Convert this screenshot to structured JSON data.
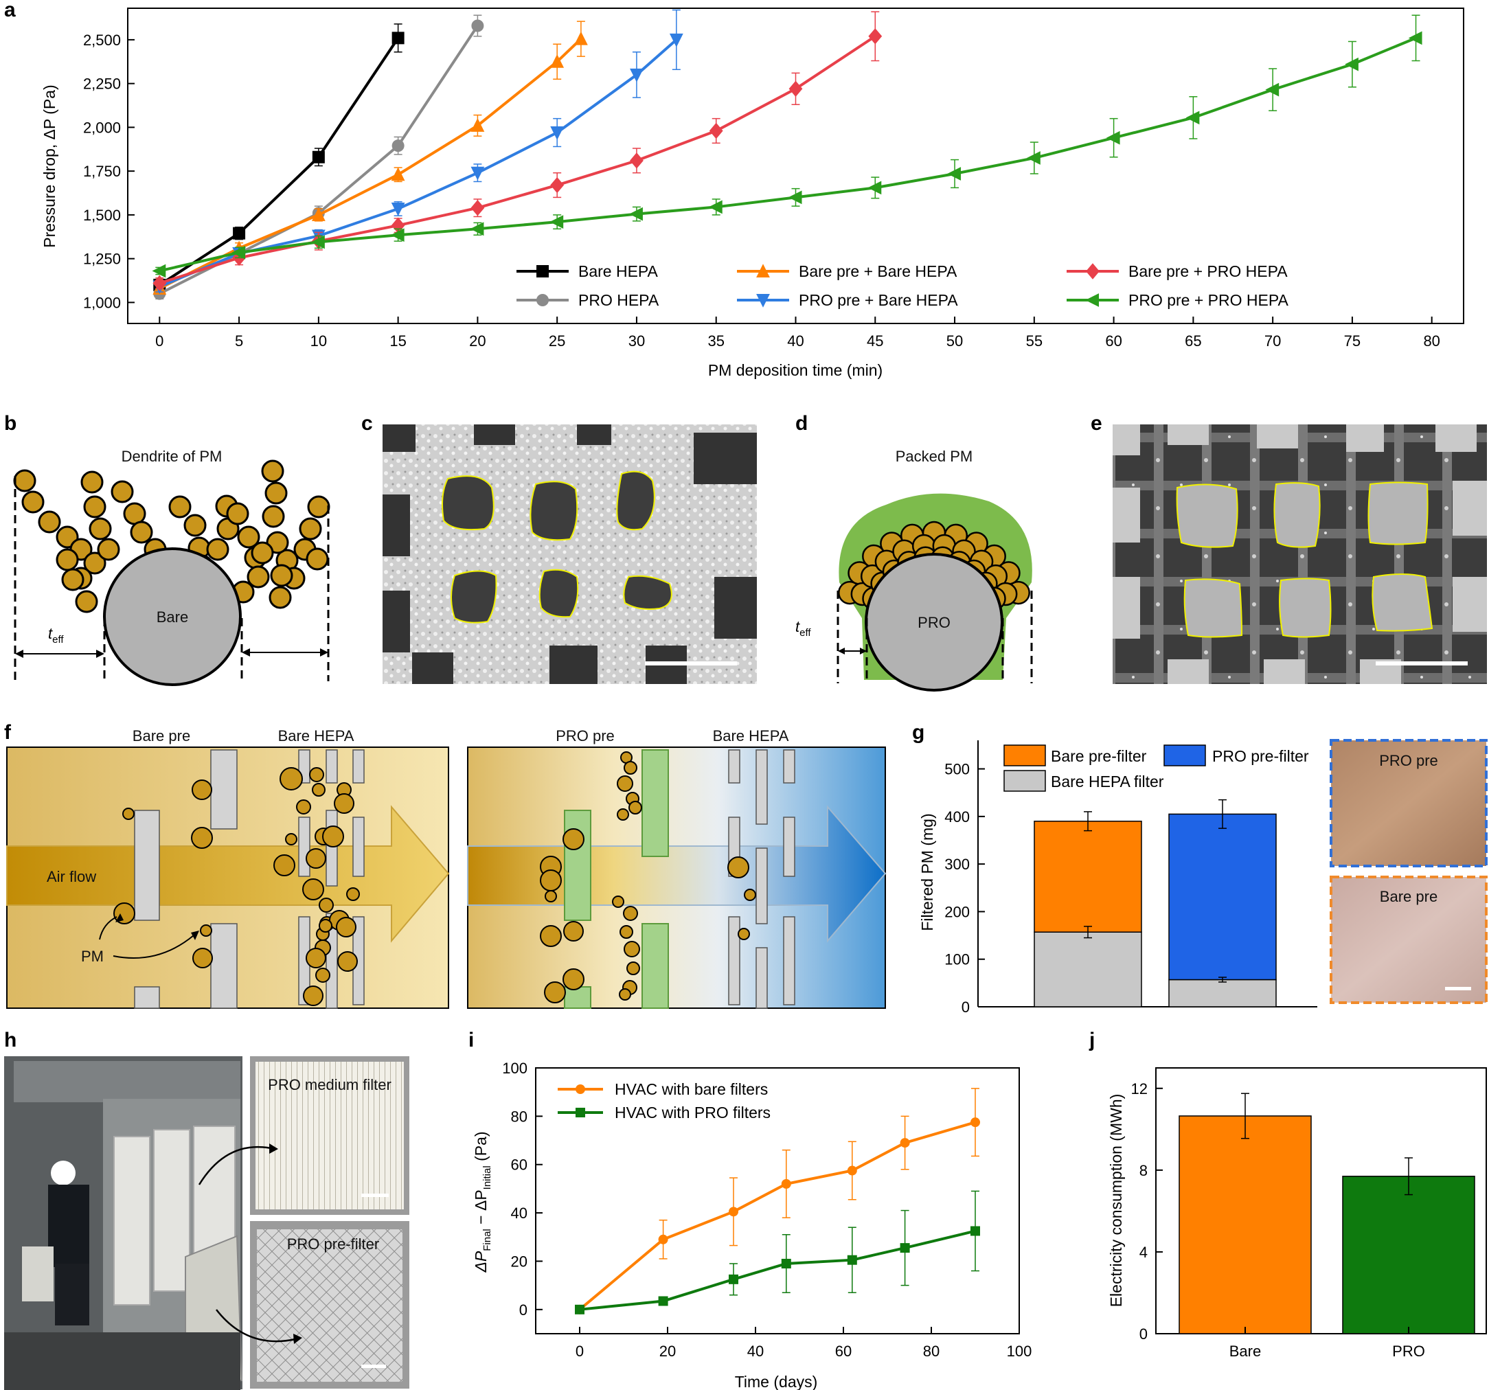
{
  "panel_labels": [
    "a",
    "b",
    "c",
    "d",
    "e",
    "f",
    "g",
    "h",
    "i",
    "j"
  ],
  "colors": {
    "black": "#000000",
    "grey": "#8a8a8a",
    "orange": "#ff8000",
    "blue": "#2f7de1",
    "red": "#e8404a",
    "green": "#2a9d1c",
    "gold": "#c9951b",
    "bar_grey": "#c8c8c8",
    "bar_blue": "#1f64e6",
    "bar_green": "#0e7a0e"
  },
  "chart_data": [
    {
      "id": "a",
      "type": "line",
      "xlabel": "PM deposition time (min)",
      "ylabel": "Pressure drop, ΔP (Pa)",
      "xlim": [
        -2,
        82
      ],
      "ylim": [
        880,
        2680
      ],
      "x_ticks": [
        "0",
        "5",
        "10",
        "15",
        "20",
        "25",
        "30",
        "35",
        "40",
        "45",
        "50",
        "55",
        "60",
        "65",
        "70",
        "75",
        "80"
      ],
      "y_ticks": [
        "1,000",
        "1,250",
        "1,500",
        "1,750",
        "2,000",
        "2,250",
        "2,500"
      ],
      "series": [
        {
          "name": "Bare HEPA",
          "color": "#000000",
          "marker": "square",
          "x": [
            0,
            5,
            10,
            15
          ],
          "y": [
            1100,
            1395,
            1830,
            2510
          ],
          "err": [
            30,
            35,
            50,
            80
          ]
        },
        {
          "name": "PRO HEPA",
          "color": "#8a8a8a",
          "marker": "circle",
          "x": [
            0,
            10,
            15,
            20
          ],
          "y": [
            1050,
            1510,
            1895,
            2580
          ],
          "err": [
            30,
            40,
            50,
            60
          ]
        },
        {
          "name": "Bare pre + Bare HEPA",
          "color": "#ff8000",
          "marker": "triangle-up",
          "x": [
            0,
            5,
            10,
            15,
            20,
            25,
            26.5
          ],
          "y": [
            1080,
            1310,
            1500,
            1730,
            2010,
            2375,
            2505
          ],
          "err": [
            30,
            30,
            35,
            40,
            60,
            100,
            100
          ]
        },
        {
          "name": "PRO pre + Bare HEPA",
          "color": "#2f7de1",
          "marker": "triangle-down",
          "x": [
            0,
            5,
            10,
            15,
            20,
            25,
            30,
            32.5
          ],
          "y": [
            1090,
            1280,
            1380,
            1535,
            1740,
            1970,
            2300,
            2500
          ],
          "err": [
            30,
            30,
            35,
            40,
            50,
            80,
            130,
            170
          ]
        },
        {
          "name": "Bare pre + PRO HEPA",
          "color": "#e8404a",
          "marker": "diamond",
          "x": [
            0,
            5,
            10,
            15,
            20,
            25,
            30,
            35,
            40,
            45
          ],
          "y": [
            1110,
            1255,
            1350,
            1440,
            1540,
            1670,
            1810,
            1980,
            2220,
            2520
          ],
          "err": [
            30,
            40,
            50,
            40,
            50,
            70,
            70,
            70,
            90,
            140
          ]
        },
        {
          "name": "PRO pre + PRO HEPA",
          "color": "#2a9d1c",
          "marker": "triangle-left",
          "x": [
            0,
            5,
            10,
            15,
            20,
            25,
            30,
            35,
            40,
            45,
            50,
            55,
            60,
            65,
            70,
            75,
            79
          ],
          "y": [
            1180,
            1285,
            1345,
            1385,
            1420,
            1460,
            1505,
            1545,
            1600,
            1655,
            1735,
            1825,
            1940,
            2055,
            2215,
            2360,
            2510
          ],
          "err": [
            20,
            30,
            35,
            35,
            35,
            40,
            40,
            45,
            50,
            60,
            80,
            90,
            110,
            120,
            120,
            130,
            130
          ]
        }
      ]
    },
    {
      "id": "g",
      "type": "bar",
      "stacked": true,
      "ylabel": "Filtered PM (mg)",
      "ylim": [
        0,
        560
      ],
      "y_ticks": [
        "0",
        "100",
        "200",
        "300",
        "400",
        "500"
      ],
      "legend": [
        "Bare pre-filter",
        "PRO pre-filter",
        "Bare HEPA filter"
      ],
      "bars": [
        {
          "name": "Bare pre-filter + Bare HEPA",
          "bottom_name": "Bare HEPA filter",
          "bottom": 157,
          "bottom_err": 12,
          "top_name": "Bare pre-filter",
          "total": 390,
          "total_err": 20,
          "top_color": "#ff8000"
        },
        {
          "name": "PRO pre-filter + Bare HEPA",
          "bottom_name": "Bare HEPA filter",
          "bottom": 57,
          "bottom_err": 5,
          "top_name": "PRO pre-filter",
          "total": 405,
          "total_err": 30,
          "top_color": "#1f64e6"
        }
      ]
    },
    {
      "id": "i",
      "type": "line",
      "xlabel": "Time (days)",
      "ylabel": "ΔP",
      "ylabel_sub1": "Final",
      "ylabel_mid": " − ΔP",
      "ylabel_sub2": "Initial",
      "ylabel_unit": " (Pa)",
      "xlim": [
        -10,
        100
      ],
      "ylim": [
        -10,
        100
      ],
      "x_ticks": [
        "0",
        "20",
        "40",
        "60",
        "80",
        "100"
      ],
      "y_ticks": [
        "0",
        "20",
        "40",
        "60",
        "80",
        "100"
      ],
      "series": [
        {
          "name": "HVAC with bare filters",
          "color": "#ff8000",
          "marker": "circle",
          "x": [
            0,
            19,
            35,
            47,
            62,
            74,
            90
          ],
          "y": [
            0,
            29,
            40.5,
            52,
            57.5,
            69,
            77.5
          ],
          "err": [
            0,
            8,
            14,
            14,
            12,
            11,
            14
          ]
        },
        {
          "name": "HVAC with PRO filters",
          "color": "#0e7a0e",
          "marker": "square",
          "x": [
            0,
            19,
            35,
            47,
            62,
            74,
            90
          ],
          "y": [
            0,
            3.5,
            12.5,
            19,
            20.5,
            25.5,
            32.5
          ],
          "err": [
            0,
            0,
            6.5,
            12,
            13.5,
            15.5,
            16.5
          ]
        }
      ]
    },
    {
      "id": "j",
      "type": "bar",
      "ylabel": "Electricity consumption (MWh)",
      "ylim": [
        0,
        13
      ],
      "y_ticks": [
        "0",
        "4",
        "8",
        "12"
      ],
      "categories": [
        "Bare",
        "PRO"
      ],
      "values": [
        10.65,
        7.7
      ],
      "err": [
        1.1,
        0.9
      ],
      "colors": [
        "#ff8000",
        "#0e7a0e"
      ]
    }
  ],
  "panel_b": {
    "title": "Dendrite of PM",
    "core": "Bare",
    "t_eff": "t",
    "t_eff_sub": "eff"
  },
  "panel_d": {
    "title": "Packed PM",
    "core": "PRO",
    "t_eff": "t",
    "t_eff_sub": "eff"
  },
  "panel_f": {
    "left": {
      "pre": "Bare pre",
      "hepa": "Bare HEPA",
      "airflow": "Air flow",
      "pm": "PM"
    },
    "right": {
      "pre": "PRO pre",
      "hepa": "Bare HEPA"
    }
  },
  "panel_g_photos": {
    "top": "PRO pre",
    "bottom": "Bare pre"
  },
  "panel_h": {
    "photo_top": "PRO medium filter",
    "photo_bottom": "PRO pre-filter"
  }
}
